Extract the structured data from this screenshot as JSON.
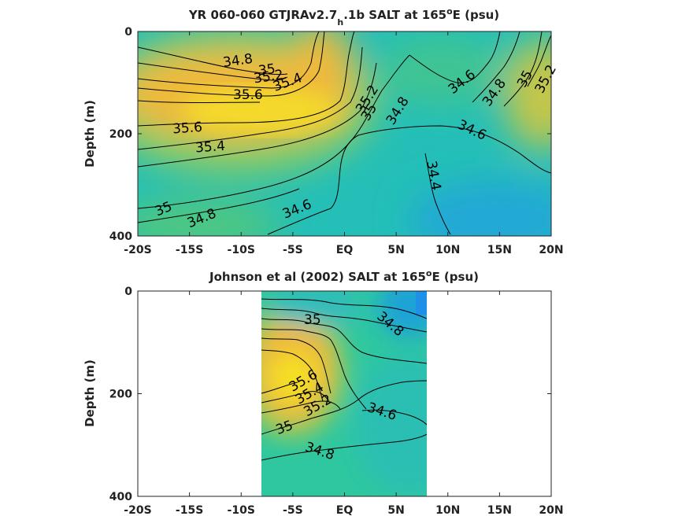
{
  "colors": {
    "salt_low": "#1e90e8",
    "salt_mid_low": "#1fb9c8",
    "salt_mid": "#2ec7a0",
    "salt_mid_high": "#7dcb6a",
    "salt_high": "#f0b93a",
    "salt_max": "#f4e020",
    "missing": "#ffffff"
  },
  "chart_data": [
    {
      "type": "heatmap",
      "title_main": "YR 060-060 GTJRAv2.7",
      "title_sub": "h",
      "title_rest": ".1b SALT at 165",
      "title_sup": "o",
      "title_end": "E (psu)",
      "xlabel": "",
      "ylabel": "Depth (m)",
      "x_ticks": [
        "-20S",
        "-15S",
        "-10S",
        "-5S",
        "EQ",
        "5N",
        "10N",
        "15N",
        "20N"
      ],
      "x_tick_values": [
        -20,
        -15,
        -10,
        -5,
        0,
        5,
        10,
        15,
        20
      ],
      "y_ticks": [
        "0",
        "200",
        "400"
      ],
      "y_tick_values": [
        0,
        200,
        400
      ],
      "xlim": [
        -20,
        20
      ],
      "ylim": [
        0,
        400
      ],
      "y_reversed": true,
      "contour_labels": [
        "34.8",
        "35",
        "35.2",
        "35.4",
        "35.6",
        "35.6",
        "35.4",
        "35",
        "34.8",
        "34.6",
        "35.2",
        "35",
        "34.8",
        "34.6",
        "34.8",
        "35",
        "35.2",
        "34.6",
        "34.4"
      ],
      "salinity_range_psu": [
        34.3,
        35.8
      ]
    },
    {
      "type": "heatmap",
      "title_main": "Johnson et al (2002) SALT at 165",
      "title_sup": "o",
      "title_end": "E (psu)",
      "xlabel": "",
      "ylabel": "Depth (m)",
      "x_ticks": [
        "-20S",
        "-15S",
        "-10S",
        "-5S",
        "EQ",
        "5N",
        "10N",
        "15N",
        "20N"
      ],
      "x_tick_values": [
        -20,
        -15,
        -10,
        -5,
        0,
        5,
        10,
        15,
        20
      ],
      "y_ticks": [
        "0",
        "200",
        "400"
      ],
      "y_tick_values": [
        0,
        200,
        400
      ],
      "xlim": [
        -20,
        20
      ],
      "ylim": [
        0,
        400
      ],
      "y_reversed": true,
      "data_extent_lat": [
        -8,
        8
      ],
      "contour_labels": [
        "35",
        "34.8",
        "35.6",
        "35.4",
        "35.2",
        "34.6",
        "35",
        "34.8"
      ],
      "salinity_range_psu": [
        34.3,
        35.8
      ]
    }
  ]
}
